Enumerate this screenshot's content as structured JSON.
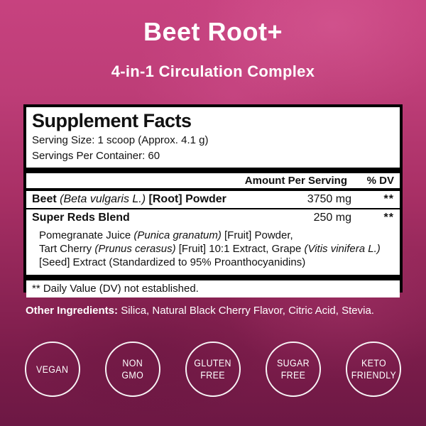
{
  "colors": {
    "pink_top": "#c7427f",
    "plum_bottom": "#6d1844",
    "panel_background": "#ffffff",
    "panel_border": "#000000",
    "text_on_pink": "#ffffff",
    "text_on_panel": "#111111"
  },
  "header": {
    "title": "Beet Root+",
    "subtitle": "4-in-1 Circulation Complex"
  },
  "supplement_facts": {
    "title": "Supplement Facts",
    "serving_size": "Serving Size: 1 scoop (Approx. 4.1 g)",
    "servings_per_container": "Servings Per Container: 60",
    "columns": {
      "amount": "Amount Per Serving",
      "dv": "% DV"
    },
    "rows": {
      "beet": {
        "name": "Beet",
        "latin": "(Beta vulgaris L.)",
        "suffix": "[Root] Powder",
        "amount": "3750 mg",
        "dv": "**"
      },
      "super_reds": {
        "name": "Super Reds Blend",
        "amount": "250 mg",
        "dv": "**"
      }
    },
    "blend_description": {
      "l1a": "Pomegranate Juice ",
      "l1b": "(Punica granatum)",
      "l1c": " [Fruit] Powder,",
      "l2a": "Tart Cherry ",
      "l2b": "(Prunus cerasus)",
      "l2c": " [Fruit] 10:1 Extract, Grape ",
      "l2d": "(Vitis vinifera L.)",
      "l3": "[Seed] Extract (Standardized to 95% Proanthocyanidins)"
    },
    "footnote": "** Daily Value (DV) not established."
  },
  "other_ingredients": {
    "label": "Other Ingredients:",
    "text": "Silica, Natural Black Cherry Flavor, Citric Acid, Stevia."
  },
  "badges": [
    {
      "id": "vegan",
      "lines": [
        "VEGAN"
      ]
    },
    {
      "id": "non-gmo",
      "lines": [
        "NON",
        "GMO"
      ]
    },
    {
      "id": "gluten-free",
      "lines": [
        "GLUTEN",
        "FREE"
      ]
    },
    {
      "id": "sugar-free",
      "lines": [
        "SUGAR",
        "FREE"
      ]
    },
    {
      "id": "keto-friendly",
      "lines": [
        "KETO",
        "FRIENDLY"
      ]
    }
  ]
}
